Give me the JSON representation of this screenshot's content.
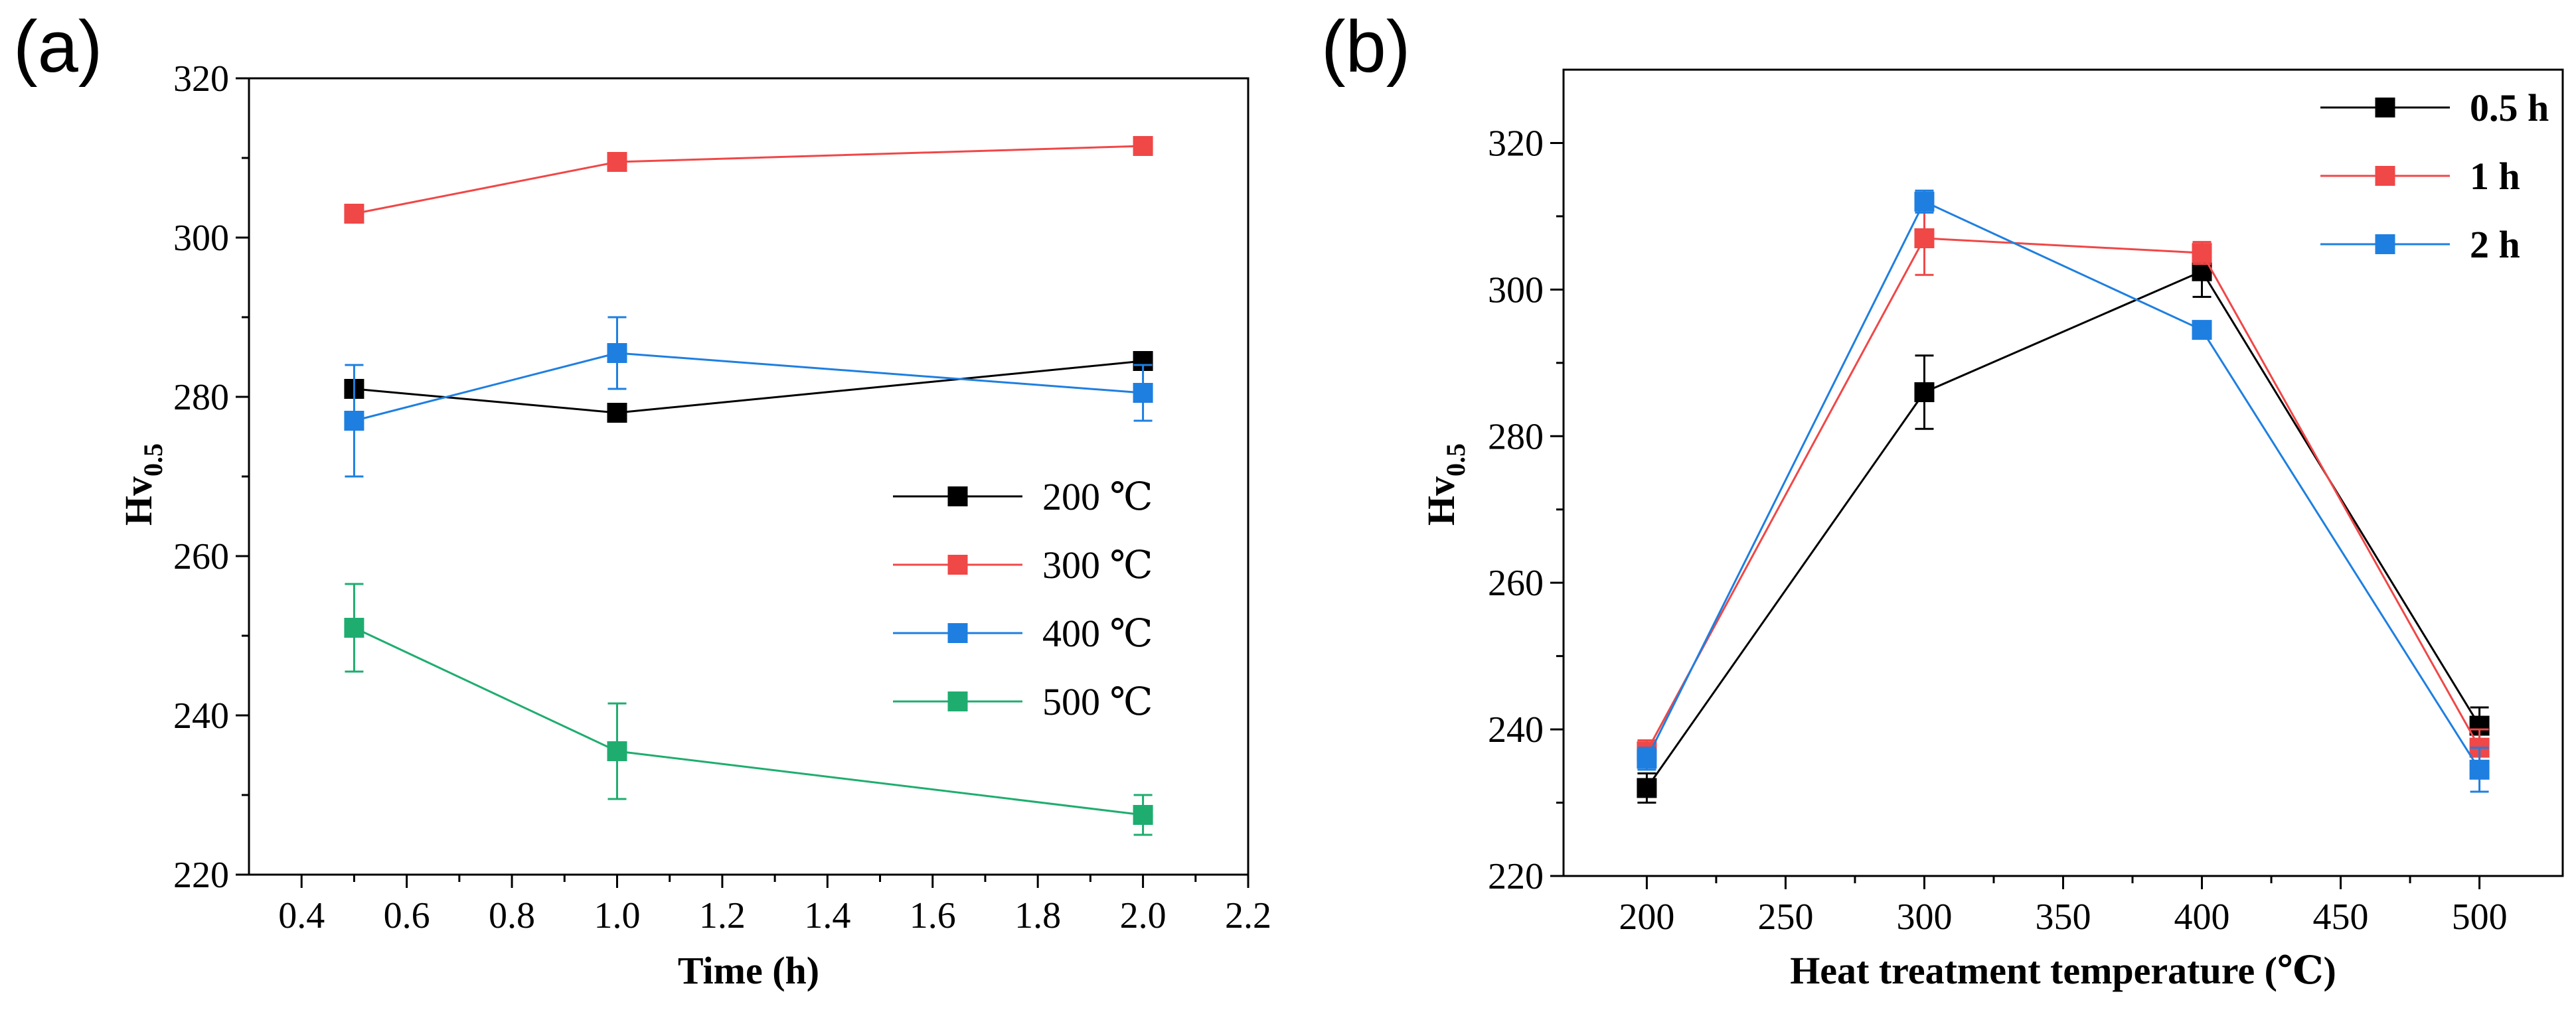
{
  "chart_data": [
    {
      "panel_label": "(a)",
      "type": "line",
      "x": [
        0.5,
        1.0,
        2.0
      ],
      "xlabel": "Time (h)",
      "ylabel": "Hv0.5",
      "ylabel_main": "Hv",
      "ylabel_sub": "0.5",
      "xlim": [
        0.3,
        2.2
      ],
      "ylim": [
        220,
        320
      ],
      "x_ticks": [
        "0.4",
        "0.6",
        "0.8",
        "1.0",
        "1.2",
        "1.4",
        "1.6",
        "1.8",
        "2.0",
        "2.2"
      ],
      "y_ticks": [
        "220",
        "240",
        "260",
        "280",
        "300",
        "320"
      ],
      "grid": false,
      "legend_position": "center-right",
      "series": [
        {
          "name": "200 ℃",
          "color": "#000000",
          "values": [
            281,
            278,
            284.5
          ],
          "errors": [
            0,
            0,
            0
          ]
        },
        {
          "name": "300 ℃",
          "color": "#f04747",
          "values": [
            303,
            309.5,
            311.5
          ],
          "errors": [
            0,
            0,
            0
          ]
        },
        {
          "name": "400 ℃",
          "color": "#1e7fe0",
          "values": [
            277,
            285.5,
            280.5
          ],
          "errors": [
            7,
            4.5,
            3.5
          ]
        },
        {
          "name": "500 ℃",
          "color": "#1fad6f",
          "values": [
            251,
            235.5,
            227.5
          ],
          "errors": [
            5.5,
            6,
            2.5
          ]
        }
      ]
    },
    {
      "panel_label": "(b)",
      "type": "line",
      "x": [
        200,
        300,
        400,
        500
      ],
      "xlabel": "Heat treatment temperature (℃)",
      "ylabel": "Hv0.5",
      "ylabel_main": "Hv",
      "ylabel_sub": "0.5",
      "xlim": [
        170,
        530
      ],
      "ylim": [
        220,
        330
      ],
      "x_ticks": [
        "200",
        "250",
        "300",
        "350",
        "400",
        "450",
        "500"
      ],
      "y_ticks": [
        "220",
        "240",
        "260",
        "280",
        "300",
        "320"
      ],
      "grid": false,
      "legend_position": "top-right",
      "series": [
        {
          "name": "0.5 h",
          "color": "#000000",
          "values": [
            232,
            286,
            302.5,
            240.5
          ],
          "errors": [
            2,
            5,
            3.5,
            2.5
          ]
        },
        {
          "name": "1 h",
          "color": "#f04747",
          "values": [
            237,
            307,
            305,
            237.5
          ],
          "errors": [
            1.5,
            5,
            1.5,
            2.5
          ]
        },
        {
          "name": "2 h",
          "color": "#1e7fe0",
          "values": [
            236,
            312,
            294.5,
            234.5
          ],
          "errors": [
            1.5,
            1.5,
            1,
            3
          ]
        }
      ]
    }
  ]
}
